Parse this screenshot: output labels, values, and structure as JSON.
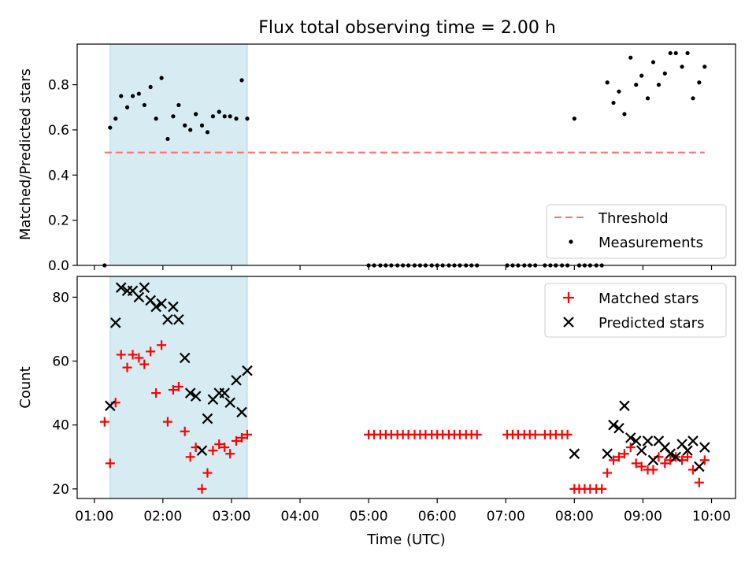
{
  "chart_data": [
    {
      "type": "scatter",
      "title": "Flux total observing time = 2.00 h",
      "xlabel": "",
      "ylabel": "Matched/Predicted stars",
      "xlim": [
        0.75,
        10.35
      ],
      "ylim": [
        0.0,
        0.98
      ],
      "yticks": [
        0.0,
        0.2,
        0.4,
        0.6,
        0.8
      ],
      "ytick_labels": [
        "0.0",
        "0.2",
        "0.4",
        "0.6",
        "0.8"
      ],
      "shaded_span": [
        1.23,
        3.23
      ],
      "threshold": {
        "name": "Threshold",
        "value": 0.5,
        "x": [
          1.15,
          9.9
        ],
        "color": "#ff6f6f"
      },
      "legend": {
        "placement": "lower-right",
        "entries": [
          "Threshold",
          "Measurements"
        ]
      },
      "series": [
        {
          "name": "Measurements",
          "color": "#000000",
          "x": [
            1.15,
            1.23,
            1.31,
            1.39,
            1.48,
            1.56,
            1.65,
            1.73,
            1.82,
            1.9,
            1.98,
            2.07,
            2.15,
            2.23,
            2.32,
            2.4,
            2.48,
            2.57,
            2.65,
            2.73,
            2.82,
            2.9,
            2.98,
            3.07,
            3.15,
            3.23,
            5.0,
            5.08,
            5.17,
            5.25,
            5.33,
            5.42,
            5.5,
            5.58,
            5.67,
            5.75,
            5.83,
            5.92,
            6.0,
            6.08,
            6.17,
            6.25,
            6.33,
            6.42,
            6.5,
            6.58,
            7.02,
            7.1,
            7.18,
            7.27,
            7.35,
            7.43,
            7.57,
            7.65,
            7.73,
            7.82,
            7.9,
            8.07,
            8.15,
            8.23,
            8.32,
            8.4,
            8.0,
            8.48,
            8.57,
            8.65,
            8.73,
            8.82,
            8.9,
            8.98,
            9.07,
            9.15,
            9.23,
            9.32,
            9.4,
            9.48,
            9.57,
            9.65,
            9.73,
            9.82,
            9.9
          ],
          "y": [
            0.0,
            0.61,
            0.65,
            0.75,
            0.7,
            0.75,
            0.76,
            0.71,
            0.79,
            0.65,
            0.83,
            0.56,
            0.66,
            0.71,
            0.62,
            0.6,
            0.67,
            0.62,
            0.59,
            0.66,
            0.68,
            0.66,
            0.66,
            0.65,
            0.82,
            0.65,
            0.0,
            0.0,
            0.0,
            0.0,
            0.0,
            0.0,
            0.0,
            0.0,
            0.0,
            0.0,
            0.0,
            0.0,
            0.0,
            0.0,
            0.0,
            0.0,
            0.0,
            0.0,
            0.0,
            0.0,
            0.0,
            0.0,
            0.0,
            0.0,
            0.0,
            0.0,
            0.0,
            0.0,
            0.0,
            0.0,
            0.0,
            0.0,
            0.0,
            0.0,
            0.0,
            0.0,
            0.65,
            0.81,
            0.72,
            0.77,
            0.67,
            0.92,
            0.8,
            0.84,
            0.74,
            0.9,
            0.8,
            0.85,
            0.94,
            0.94,
            0.88,
            0.94,
            0.74,
            0.81,
            0.88
          ]
        }
      ]
    },
    {
      "type": "scatter",
      "title": "",
      "xlabel": "Time (UTC)",
      "ylabel": "Count",
      "xlim": [
        0.75,
        10.35
      ],
      "ylim": [
        17,
        86.5
      ],
      "yticks": [
        20,
        40,
        60,
        80
      ],
      "ytick_labels": [
        "20",
        "40",
        "60",
        "80"
      ],
      "xticks": [
        1,
        2,
        3,
        4,
        5,
        6,
        7,
        8,
        9,
        10
      ],
      "xtick_labels": [
        "01:00",
        "02:00",
        "03:00",
        "04:00",
        "05:00",
        "06:00",
        "07:00",
        "08:00",
        "09:00",
        "10:00"
      ],
      "shaded_span": [
        1.23,
        3.23
      ],
      "legend": {
        "placement": "top-right",
        "entries": [
          "Matched stars",
          "Predicted stars"
        ]
      },
      "series": [
        {
          "name": "Matched stars",
          "marker": "plus",
          "color": "#ff0000",
          "x": [
            1.15,
            1.23,
            1.31,
            1.39,
            1.48,
            1.56,
            1.65,
            1.73,
            1.82,
            1.9,
            1.98,
            2.07,
            2.15,
            2.23,
            2.32,
            2.4,
            2.48,
            2.57,
            2.65,
            2.73,
            2.82,
            2.9,
            2.98,
            3.07,
            3.15,
            3.23,
            5.0,
            5.08,
            5.17,
            5.25,
            5.33,
            5.42,
            5.5,
            5.58,
            5.67,
            5.75,
            5.83,
            5.92,
            6.0,
            6.08,
            6.17,
            6.25,
            6.33,
            6.42,
            6.5,
            6.58,
            7.02,
            7.1,
            7.18,
            7.27,
            7.35,
            7.43,
            7.57,
            7.65,
            7.73,
            7.82,
            7.9,
            8.0,
            8.07,
            8.15,
            8.23,
            8.32,
            8.4,
            8.48,
            8.57,
            8.65,
            8.73,
            8.82,
            8.9,
            8.98,
            9.07,
            9.15,
            9.23,
            9.32,
            9.4,
            9.48,
            9.57,
            9.65,
            9.73,
            9.82,
            9.9
          ],
          "y": [
            41,
            28,
            47,
            62,
            58,
            62,
            61,
            59,
            63,
            50,
            65,
            41,
            51,
            52,
            38,
            30,
            33,
            20,
            25,
            32,
            34,
            33,
            31,
            35,
            36,
            37,
            37,
            37,
            37,
            37,
            37,
            37,
            37,
            37,
            37,
            37,
            37,
            37,
            37,
            37,
            37,
            37,
            37,
            37,
            37,
            37,
            37,
            37,
            37,
            37,
            37,
            37,
            37,
            37,
            37,
            37,
            37,
            20,
            20,
            20,
            20,
            20,
            20,
            25,
            29,
            30,
            31,
            33,
            28,
            27,
            26,
            26,
            30,
            28,
            29,
            30,
            29,
            30,
            26,
            22,
            29
          ]
        },
        {
          "name": "Predicted stars",
          "marker": "x",
          "color": "#000000",
          "x": [
            1.23,
            1.31,
            1.39,
            1.48,
            1.56,
            1.65,
            1.73,
            1.82,
            1.9,
            1.98,
            2.07,
            2.15,
            2.23,
            2.32,
            2.4,
            2.48,
            2.57,
            2.65,
            2.73,
            2.82,
            2.9,
            2.98,
            3.07,
            3.15,
            3.23,
            8.0,
            8.48,
            8.57,
            8.65,
            8.73,
            8.82,
            8.9,
            8.98,
            9.07,
            9.15,
            9.23,
            9.32,
            9.4,
            9.48,
            9.57,
            9.65,
            9.73,
            9.82,
            9.9
          ],
          "y": [
            46,
            72,
            83,
            82,
            82,
            80,
            83,
            79,
            77,
            78,
            73,
            77,
            73,
            61,
            50,
            49,
            32,
            42,
            48,
            50,
            50,
            47,
            54,
            44,
            57,
            31,
            31,
            40,
            39,
            46,
            36,
            35,
            32,
            35,
            29,
            35,
            33,
            31,
            30,
            34,
            32,
            35,
            27,
            33
          ]
        }
      ]
    }
  ]
}
